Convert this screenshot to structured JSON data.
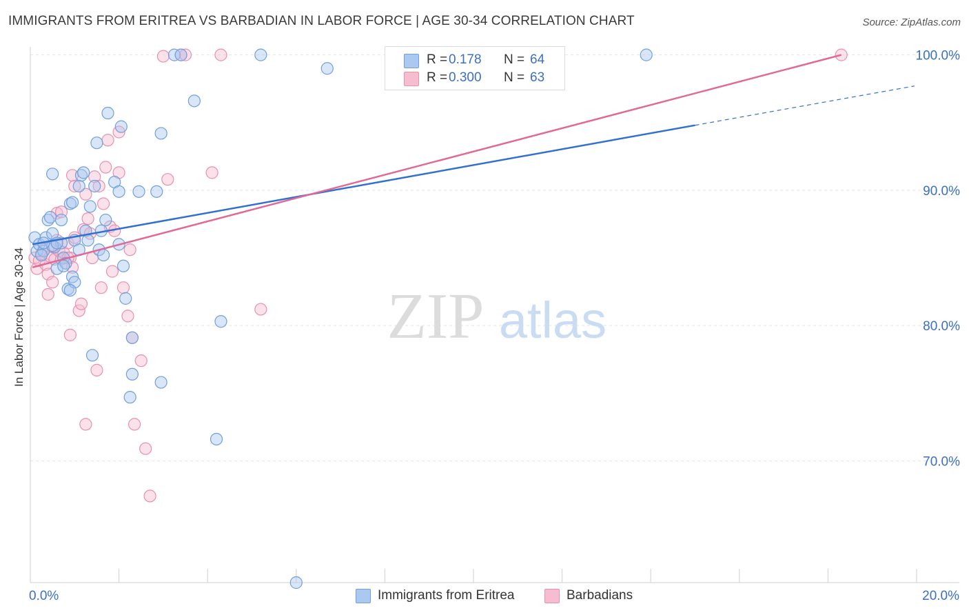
{
  "title": "IMMIGRANTS FROM ERITREA VS BARBADIAN IN LABOR FORCE | AGE 30-34 CORRELATION CHART",
  "source": "Source: ZipAtlas.com",
  "watermark": {
    "zip": "ZIP",
    "atlas": "atlas"
  },
  "legend": {
    "rows": [
      {
        "r_label": "R =",
        "r_value": "0.178",
        "n_label": "N =",
        "n_value": "64"
      },
      {
        "r_label": "R =",
        "r_value": "0.300",
        "n_label": "N =",
        "n_value": "63"
      }
    ]
  },
  "bottom_legend": {
    "series1": "Immigrants from Eritrea",
    "series2": "Barbadians"
  },
  "colors": {
    "series1_fill": "#aac8f0",
    "series1_stroke": "#6f9fdc",
    "series1_line": "#3070d0",
    "series2_fill": "#f6bccf",
    "series2_stroke": "#e890ad",
    "series2_line": "#e06a95",
    "tick_label": "#3a6fc4",
    "grid": "#e4e4e4"
  },
  "chart_data": {
    "type": "scatter",
    "title": "IMMIGRANTS FROM ERITREA VS BARBADIAN IN LABOR FORCE | AGE 30-34 CORRELATION CHART",
    "xlabel": "",
    "ylabel": "In Labor Force | Age 30-34",
    "xlim": [
      0,
      20
    ],
    "ylim": [
      61,
      101
    ],
    "x_tick_labels": [
      {
        "value": 0,
        "label": "0.0%"
      },
      {
        "value": 20,
        "label": "20.0%"
      }
    ],
    "y_tick_labels": [
      {
        "value": 100,
        "label": "100.0%"
      },
      {
        "value": 90,
        "label": "90.0%"
      },
      {
        "value": 80,
        "label": "80.0%"
      },
      {
        "value": 70,
        "label": "70.0%"
      }
    ],
    "series": [
      {
        "name": "Immigrants from Eritrea",
        "r": 0.178,
        "n": 64,
        "trend": {
          "x0": 0.05,
          "y0": 86.0,
          "x1": 15.0,
          "y1": 94.8,
          "dash_x1": 19.95,
          "dash_y1": 97.7
        },
        "points": [
          [
            0.1,
            86.5
          ],
          [
            0.15,
            85.5
          ],
          [
            0.2,
            86.0
          ],
          [
            0.3,
            85.5
          ],
          [
            0.35,
            86.5
          ],
          [
            0.4,
            87.8
          ],
          [
            0.45,
            88.0
          ],
          [
            0.5,
            86.8
          ],
          [
            0.55,
            85.8
          ],
          [
            0.6,
            84.2
          ],
          [
            0.7,
            86.1
          ],
          [
            0.75,
            85.0
          ],
          [
            0.8,
            84.6
          ],
          [
            0.85,
            82.7
          ],
          [
            0.95,
            83.6
          ],
          [
            1.0,
            83.2
          ],
          [
            0.5,
            91.2
          ],
          [
            0.7,
            87.8
          ],
          [
            0.75,
            84.4
          ],
          [
            0.9,
            89.0
          ],
          [
            0.95,
            89.1
          ],
          [
            1.0,
            86.3
          ],
          [
            1.1,
            90.3
          ],
          [
            1.1,
            85.6
          ],
          [
            0.9,
            82.6
          ],
          [
            0.5,
            85.9
          ],
          [
            0.3,
            86.1
          ],
          [
            0.25,
            85.2
          ],
          [
            1.15,
            91.1
          ],
          [
            1.2,
            91.3
          ],
          [
            1.25,
            87.0
          ],
          [
            1.3,
            86.3
          ],
          [
            1.35,
            88.8
          ],
          [
            1.45,
            90.3
          ],
          [
            1.5,
            93.5
          ],
          [
            1.55,
            85.6
          ],
          [
            1.6,
            87.0
          ],
          [
            1.65,
            85.2
          ],
          [
            1.7,
            87.8
          ],
          [
            1.75,
            95.7
          ],
          [
            1.9,
            90.6
          ],
          [
            2.0,
            86.0
          ],
          [
            2.0,
            89.9
          ],
          [
            2.05,
            94.7
          ],
          [
            2.1,
            84.4
          ],
          [
            2.15,
            82.0
          ],
          [
            2.3,
            79.1
          ],
          [
            2.3,
            76.4
          ],
          [
            2.25,
            74.7
          ],
          [
            2.45,
            89.9
          ],
          [
            2.85,
            89.9
          ],
          [
            2.95,
            94.2
          ],
          [
            2.95,
            75.8
          ],
          [
            3.25,
            100.0
          ],
          [
            3.4,
            100.0
          ],
          [
            3.7,
            96.6
          ],
          [
            4.2,
            71.6
          ],
          [
            4.3,
            80.3
          ],
          [
            5.2,
            100.0
          ],
          [
            6.7,
            99.0
          ],
          [
            6.0,
            61.0
          ],
          [
            13.9,
            100.0
          ],
          [
            1.4,
            77.8
          ],
          [
            0.6,
            86.1
          ]
        ]
      },
      {
        "name": "Barbadians",
        "r": 0.3,
        "n": 63,
        "trend": {
          "x0": 0.05,
          "y0": 84.3,
          "x1": 18.3,
          "y1": 100.0
        },
        "points": [
          [
            0.1,
            85.0
          ],
          [
            0.15,
            84.2
          ],
          [
            0.2,
            84.8
          ],
          [
            0.25,
            85.3
          ],
          [
            0.3,
            85.6
          ],
          [
            0.35,
            84.5
          ],
          [
            0.4,
            83.8
          ],
          [
            0.45,
            85.1
          ],
          [
            0.5,
            85.8
          ],
          [
            0.55,
            84.9
          ],
          [
            0.6,
            86.3
          ],
          [
            0.65,
            85.5
          ],
          [
            0.7,
            84.9
          ],
          [
            0.75,
            85.4
          ],
          [
            0.8,
            84.6
          ],
          [
            0.85,
            86.1
          ],
          [
            0.9,
            85.0
          ],
          [
            0.95,
            84.3
          ],
          [
            1.0,
            86.5
          ],
          [
            0.4,
            82.3
          ],
          [
            0.5,
            83.2
          ],
          [
            0.6,
            88.3
          ],
          [
            0.7,
            88.4
          ],
          [
            0.85,
            85.0
          ],
          [
            0.9,
            79.3
          ],
          [
            0.95,
            91.1
          ],
          [
            1.0,
            90.3
          ],
          [
            1.1,
            81.1
          ],
          [
            1.15,
            81.6
          ],
          [
            1.2,
            87.1
          ],
          [
            1.25,
            89.7
          ],
          [
            1.3,
            87.9
          ],
          [
            1.35,
            86.8
          ],
          [
            1.4,
            85.0
          ],
          [
            1.45,
            91.0
          ],
          [
            1.5,
            76.7
          ],
          [
            1.55,
            90.3
          ],
          [
            1.6,
            82.8
          ],
          [
            1.65,
            89.0
          ],
          [
            1.7,
            91.7
          ],
          [
            1.75,
            93.7
          ],
          [
            1.8,
            87.3
          ],
          [
            1.85,
            84.0
          ],
          [
            1.9,
            87.0
          ],
          [
            2.0,
            94.3
          ],
          [
            2.0,
            91.3
          ],
          [
            2.1,
            82.8
          ],
          [
            2.2,
            80.7
          ],
          [
            2.25,
            85.6
          ],
          [
            2.3,
            79.1
          ],
          [
            2.35,
            72.7
          ],
          [
            2.5,
            77.4
          ],
          [
            2.6,
            70.9
          ],
          [
            2.7,
            67.4
          ],
          [
            3.0,
            99.9
          ],
          [
            3.1,
            90.8
          ],
          [
            3.4,
            100.0
          ],
          [
            3.5,
            100.0
          ],
          [
            4.1,
            91.3
          ],
          [
            4.3,
            100.0
          ],
          [
            5.2,
            81.2
          ],
          [
            1.25,
            72.7
          ],
          [
            18.3,
            100.0
          ]
        ]
      }
    ]
  }
}
